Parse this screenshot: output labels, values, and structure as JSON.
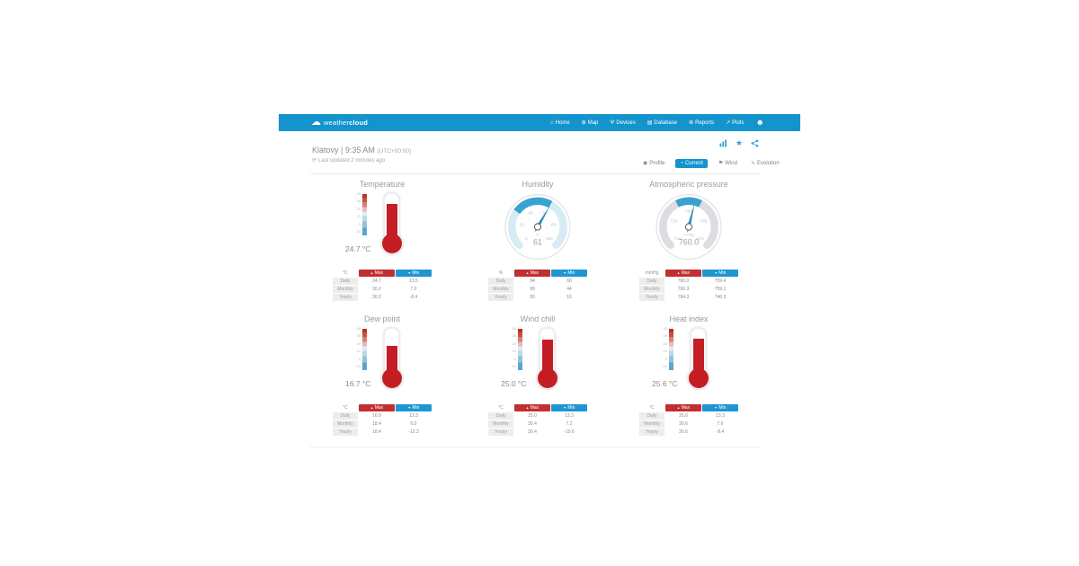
{
  "brand": {
    "weather": "weather",
    "cloud": "cloud",
    "cloud_icon": "☁"
  },
  "navbar": {
    "avatar_icon": "☻",
    "items": [
      {
        "label": "Home",
        "icon": "⌂"
      },
      {
        "label": "Map",
        "icon": "⊕"
      },
      {
        "label": "Devices",
        "icon": "Ψ"
      },
      {
        "label": "Database",
        "icon": "▤"
      },
      {
        "label": "Reports",
        "icon": "≣"
      },
      {
        "label": "Plots",
        "icon": "↗"
      }
    ]
  },
  "header": {
    "station": "Klatovy | 9:35 AM",
    "timezone": "(UTC+00:00)",
    "refresh_icon": "⟳",
    "last_updated": "Last updated 2 minutes ago",
    "star_icon": "★"
  },
  "tabs": [
    {
      "label": "Profile",
      "icon": "◉"
    },
    {
      "label": "Current",
      "icon": "◔"
    },
    {
      "label": "Wind",
      "icon": "⚑"
    },
    {
      "label": "Evolution",
      "icon": "∿"
    }
  ],
  "labels": {
    "max": "Max",
    "min": "Min",
    "arrow_up": "▲",
    "arrow_down": "▼"
  },
  "colors": {
    "navbar_blue": "#1494cd",
    "accent_teal": "#2fa4d8",
    "max_red": "#c13030",
    "min_blue": "#1e96d2",
    "mercury_red": "#c41e24"
  },
  "panels": [
    {
      "title": "Temperature",
      "type": "thermometer",
      "unit": "°C",
      "value": "24.7 °C",
      "fill_pct": 76,
      "scale_labels": [
        "40",
        "30",
        "20",
        "10",
        "0",
        "-10"
      ],
      "table": {
        "rows": [
          {
            "period": "Daily",
            "max": "24.7",
            "min": "13.5"
          },
          {
            "period": "Monthly",
            "max": "30.2",
            "min": "7.0"
          },
          {
            "period": "Yearly",
            "max": "30.2",
            "min": "-8.4"
          }
        ]
      }
    },
    {
      "title": "Humidity",
      "type": "gauge",
      "unit": "%",
      "value": "61",
      "needle_deg": 30,
      "ticks": [
        "0",
        "20",
        "40",
        "60",
        "80",
        "100"
      ],
      "table": {
        "rows": [
          {
            "period": "Daily",
            "max": "94",
            "min": "60"
          },
          {
            "period": "Monthly",
            "max": "99",
            "min": "44"
          },
          {
            "period": "Yearly",
            "max": "99",
            "min": "16"
          }
        ]
      }
    },
    {
      "title": "Atmospheric pressure",
      "type": "gauge",
      "unit": "mmHg",
      "value": "760.0",
      "needle_deg": 14,
      "ticks": [
        "710",
        "735",
        "760",
        "785",
        "810"
      ],
      "table": {
        "rows": [
          {
            "period": "Daily",
            "max": "760.0",
            "min": "759.4"
          },
          {
            "period": "Monthly",
            "max": "766.3",
            "min": "759.1"
          },
          {
            "period": "Yearly",
            "max": "784.3",
            "min": "740.3"
          }
        ]
      }
    },
    {
      "title": "Dew point",
      "type": "thermometer",
      "unit": "°C",
      "value": "16.7 °C",
      "fill_pct": 58,
      "scale_labels": [
        "40",
        "30",
        "20",
        "10",
        "0",
        "-10"
      ],
      "table": {
        "rows": [
          {
            "period": "Daily",
            "max": "16.9",
            "min": "12.3"
          },
          {
            "period": "Monthly",
            "max": "18.4",
            "min": "6.0"
          },
          {
            "period": "Yearly",
            "max": "18.4",
            "min": "-12.3"
          }
        ]
      }
    },
    {
      "title": "Wind chill",
      "type": "thermometer",
      "unit": "°C",
      "value": "25.0 °C",
      "fill_pct": 74,
      "scale_labels": [
        "40",
        "30",
        "20",
        "10",
        "0",
        "-10"
      ],
      "table": {
        "rows": [
          {
            "period": "Daily",
            "max": "25.0",
            "min": "13.3"
          },
          {
            "period": "Monthly",
            "max": "30.4",
            "min": "7.2"
          },
          {
            "period": "Yearly",
            "max": "30.4",
            "min": "-10.6"
          }
        ]
      }
    },
    {
      "title": "Heat index",
      "type": "thermometer",
      "unit": "°C",
      "value": "25.6 °C",
      "fill_pct": 76,
      "scale_labels": [
        "40",
        "30",
        "20",
        "10",
        "0",
        "-10"
      ],
      "table": {
        "rows": [
          {
            "period": "Daily",
            "max": "25.6",
            "min": "13.3"
          },
          {
            "period": "Monthly",
            "max": "30.6",
            "min": "7.6"
          },
          {
            "period": "Yearly",
            "max": "30.6",
            "min": "-8.4"
          }
        ]
      }
    }
  ]
}
